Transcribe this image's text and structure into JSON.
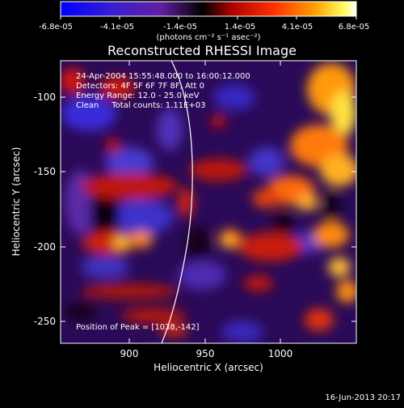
{
  "colorbar": {
    "tick_labels": [
      "-6.8e-05",
      "-4.1e-05",
      "-1.4e-05",
      "1.4e-05",
      "4.1e-05",
      "6.8e-05"
    ],
    "unit_label": "(photons cm⁻² s⁻¹ asec⁻²)"
  },
  "plot": {
    "title": "Reconstructed RHESSI Image",
    "x_axis_label": "Heliocentric X (arcsec)",
    "y_axis_label": "Heliocentric Y (arcsec)",
    "x_ticks": [
      "900",
      "950",
      "1000"
    ],
    "y_ticks": [
      "-100",
      "-150",
      "-200",
      "-250"
    ],
    "info_lines": [
      "24-Apr-2004 15:55:48.000 to 16:00:12.000",
      "Detectors: 4F 5F 6F 7F 8F, Att 0",
      "Energy Range: 12.0 - 25.0 keV",
      "Clean     Total counts: 1.11E+03"
    ],
    "peak_text": "Position of Peak = [1038,-142]",
    "footer_date": "16-Jun-2013 20:17"
  },
  "colors": {
    "background": "#000000",
    "scale_low": "#0000ff",
    "scale_mid": "#000000",
    "scale_high": "#ffff00",
    "limb_line": "#ffffff"
  },
  "chart_data": {
    "type": "heatmap",
    "title": "Reconstructed RHESSI Image",
    "xlabel": "Heliocentric X (arcsec)",
    "ylabel": "Heliocentric Y (arcsec)",
    "xlim": [
      858,
      1044
    ],
    "ylim": [
      -266,
      -70
    ],
    "color_range": [
      -6.8e-05,
      6.8e-05
    ],
    "peak": [
      1038,
      -142
    ]
  }
}
